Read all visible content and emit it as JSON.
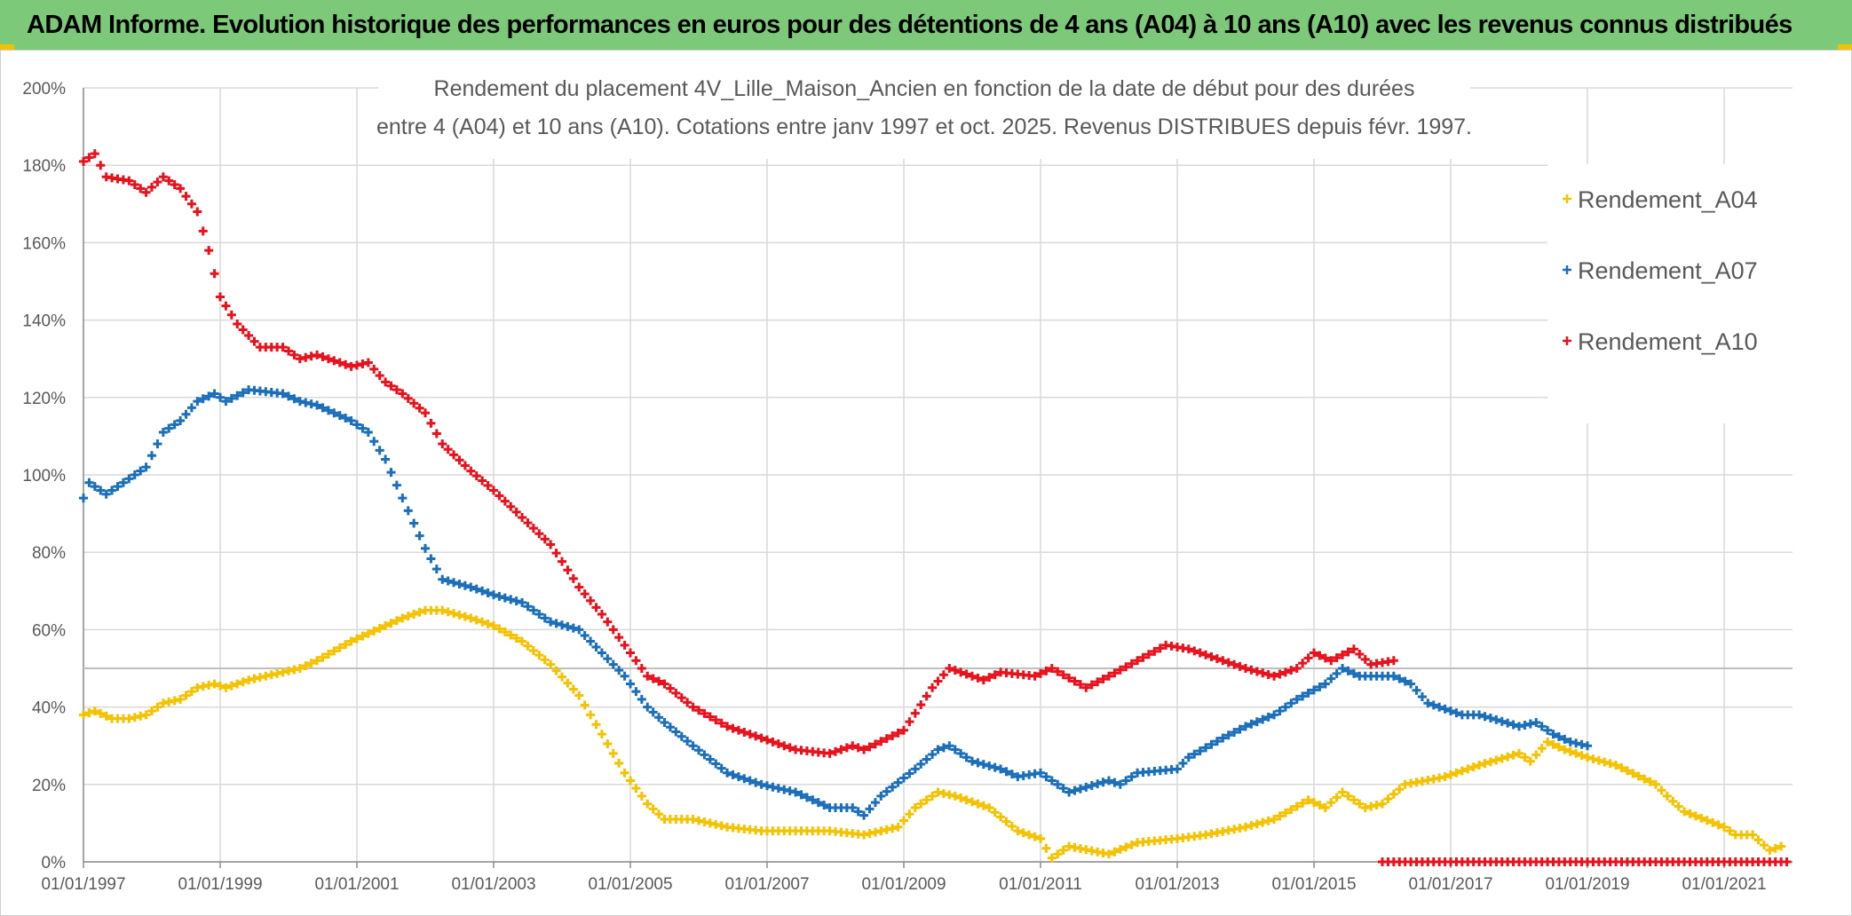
{
  "header": {
    "title": "ADAM Informe. Evolution historique des performances en euros pour des détentions de 4 ans (A04) à 10 ans (A10) avec les revenus connus distribués"
  },
  "colors": {
    "header_bg": "#7cc97a",
    "A04": "#f5c200",
    "A07": "#1b6fba",
    "A10": "#e8111c",
    "grid": "#d9d9d9",
    "reference_line": "#bfbfbf"
  },
  "chart_data": {
    "type": "scatter",
    "title_lines": [
      "Rendement du placement 4V_Lille_Maison_Ancien en fonction de la date de début pour des durées",
      "entre 4 (A04) et 10 ans (A10). Cotations entre janv 1997 et oct. 2025. Revenus DISTRIBUES depuis févr. 1997."
    ],
    "marker": "+",
    "y_tick_labels": [
      "0%",
      "20%",
      "40%",
      "60%",
      "80%",
      "100%",
      "120%",
      "140%",
      "160%",
      "180%",
      "200%"
    ],
    "ylim": [
      0,
      200
    ],
    "y_unit": "%",
    "x_tick_labels": [
      "01/01/1997",
      "01/01/1999",
      "01/01/2001",
      "01/01/2003",
      "01/01/2005",
      "01/01/2007",
      "01/01/2009",
      "01/01/2011",
      "01/01/2013",
      "01/01/2015",
      "01/01/2017",
      "01/01/2019",
      "01/01/2021"
    ],
    "xlim": [
      "1997-01-01",
      "2022-01-01"
    ],
    "reference_line_y": 50,
    "grid": true,
    "legend_position": "right",
    "series": [
      {
        "name": "Rendement_A04",
        "points": [
          [
            "1997-01-01",
            38
          ],
          [
            "1997-03-01",
            39
          ],
          [
            "1997-06-01",
            37
          ],
          [
            "1997-09-01",
            37
          ],
          [
            "1997-12-01",
            38
          ],
          [
            "1998-03-01",
            41
          ],
          [
            "1998-06-01",
            42
          ],
          [
            "1998-09-01",
            45
          ],
          [
            "1998-12-01",
            46
          ],
          [
            "1999-02-01",
            45
          ],
          [
            "1999-06-01",
            47
          ],
          [
            "1999-12-01",
            49
          ],
          [
            "2000-03-01",
            50
          ],
          [
            "2000-06-01",
            52
          ],
          [
            "2000-12-01",
            57
          ],
          [
            "2001-03-01",
            59
          ],
          [
            "2001-06-01",
            61
          ],
          [
            "2001-09-01",
            63
          ],
          [
            "2002-01-01",
            65
          ],
          [
            "2002-04-01",
            65
          ],
          [
            "2002-09-01",
            63
          ],
          [
            "2003-01-01",
            61
          ],
          [
            "2003-06-01",
            57
          ],
          [
            "2003-11-01",
            51
          ],
          [
            "2004-04-01",
            43
          ],
          [
            "2004-08-01",
            33
          ],
          [
            "2004-12-01",
            23
          ],
          [
            "2005-04-01",
            15
          ],
          [
            "2005-07-01",
            11
          ],
          [
            "2005-12-01",
            11
          ],
          [
            "2006-06-01",
            9
          ],
          [
            "2006-12-01",
            8
          ],
          [
            "2007-06-01",
            8
          ],
          [
            "2007-12-01",
            8
          ],
          [
            "2008-06-01",
            7
          ],
          [
            "2008-12-01",
            9
          ],
          [
            "2009-03-01",
            14
          ],
          [
            "2009-07-01",
            18
          ],
          [
            "2009-10-01",
            17
          ],
          [
            "2010-04-01",
            14
          ],
          [
            "2010-09-01",
            8
          ],
          [
            "2011-01-01",
            6
          ],
          [
            "2011-03-01",
            1
          ],
          [
            "2011-06-01",
            4
          ],
          [
            "2012-01-01",
            2
          ],
          [
            "2012-06-01",
            5
          ],
          [
            "2013-01-01",
            6
          ],
          [
            "2013-06-01",
            7
          ],
          [
            "2014-01-01",
            9
          ],
          [
            "2014-06-01",
            11
          ],
          [
            "2014-12-01",
            16
          ],
          [
            "2015-03-01",
            14
          ],
          [
            "2015-06-01",
            18
          ],
          [
            "2015-10-01",
            14
          ],
          [
            "2016-01-01",
            15
          ],
          [
            "2016-05-01",
            20
          ],
          [
            "2016-12-01",
            22
          ],
          [
            "2017-06-01",
            25
          ],
          [
            "2018-01-01",
            28
          ],
          [
            "2018-03-01",
            26
          ],
          [
            "2018-06-01",
            31
          ],
          [
            "2018-09-01",
            29
          ],
          [
            "2019-01-01",
            27
          ],
          [
            "2019-06-01",
            25
          ],
          [
            "2020-01-01",
            20
          ],
          [
            "2020-03-01",
            17
          ],
          [
            "2020-06-01",
            13
          ],
          [
            "2021-01-01",
            9
          ],
          [
            "2021-03-01",
            7
          ],
          [
            "2021-06-01",
            7
          ],
          [
            "2021-09-01",
            3
          ],
          [
            "2021-11-01",
            4
          ]
        ]
      },
      {
        "name": "Rendement_A07",
        "points": [
          [
            "1997-01-01",
            94
          ],
          [
            "1997-02-01",
            98
          ],
          [
            "1997-05-01",
            95
          ],
          [
            "1997-09-01",
            99
          ],
          [
            "1997-12-01",
            102
          ],
          [
            "1998-03-01",
            111
          ],
          [
            "1998-06-01",
            114
          ],
          [
            "1998-09-01",
            119
          ],
          [
            "1998-12-01",
            121
          ],
          [
            "1999-02-01",
            119
          ],
          [
            "1999-06-01",
            122
          ],
          [
            "1999-12-01",
            121
          ],
          [
            "2000-03-01",
            119
          ],
          [
            "2000-06-01",
            118
          ],
          [
            "2000-12-01",
            114
          ],
          [
            "2001-03-01",
            111
          ],
          [
            "2001-06-01",
            104
          ],
          [
            "2001-09-01",
            94
          ],
          [
            "2002-01-01",
            81
          ],
          [
            "2002-04-01",
            73
          ],
          [
            "2002-09-01",
            71
          ],
          [
            "2003-01-01",
            69
          ],
          [
            "2003-06-01",
            67
          ],
          [
            "2003-11-01",
            62
          ],
          [
            "2004-04-01",
            60
          ],
          [
            "2004-08-01",
            54
          ],
          [
            "2004-12-01",
            48
          ],
          [
            "2005-04-01",
            40
          ],
          [
            "2005-07-01",
            36
          ],
          [
            "2005-12-01",
            30
          ],
          [
            "2006-06-01",
            23
          ],
          [
            "2006-12-01",
            20
          ],
          [
            "2007-06-01",
            18
          ],
          [
            "2007-12-01",
            14
          ],
          [
            "2008-04-01",
            14
          ],
          [
            "2008-06-01",
            12
          ],
          [
            "2008-09-01",
            17
          ],
          [
            "2009-03-01",
            24
          ],
          [
            "2009-07-01",
            29
          ],
          [
            "2009-09-01",
            30
          ],
          [
            "2010-01-01",
            26
          ],
          [
            "2010-06-01",
            24
          ],
          [
            "2010-09-01",
            22
          ],
          [
            "2011-01-01",
            23
          ],
          [
            "2011-06-01",
            18
          ],
          [
            "2012-01-01",
            21
          ],
          [
            "2012-03-01",
            20
          ],
          [
            "2012-06-01",
            23
          ],
          [
            "2013-01-01",
            24
          ],
          [
            "2013-03-01",
            27
          ],
          [
            "2013-09-01",
            32
          ],
          [
            "2014-01-01",
            35
          ],
          [
            "2014-06-01",
            38
          ],
          [
            "2014-10-01",
            42
          ],
          [
            "2015-03-01",
            46
          ],
          [
            "2015-06-01",
            50
          ],
          [
            "2015-09-01",
            48
          ],
          [
            "2016-03-01",
            48
          ],
          [
            "2016-06-01",
            46
          ],
          [
            "2016-09-01",
            41
          ],
          [
            "2017-03-01",
            38
          ],
          [
            "2017-06-01",
            38
          ],
          [
            "2018-01-01",
            35
          ],
          [
            "2018-04-01",
            36
          ],
          [
            "2018-07-01",
            33
          ],
          [
            "2018-10-01",
            31
          ],
          [
            "2019-01-01",
            30
          ]
        ]
      },
      {
        "name": "Rendement_A10",
        "points": [
          [
            "1997-01-01",
            181
          ],
          [
            "1997-03-01",
            183
          ],
          [
            "1997-05-01",
            177
          ],
          [
            "1997-09-01",
            176
          ],
          [
            "1997-12-01",
            173
          ],
          [
            "1998-03-01",
            177
          ],
          [
            "1998-06-01",
            174
          ],
          [
            "1998-09-01",
            168
          ],
          [
            "1998-11-01",
            158
          ],
          [
            "1999-01-01",
            146
          ],
          [
            "1999-04-01",
            139
          ],
          [
            "1999-08-01",
            133
          ],
          [
            "1999-12-01",
            133
          ],
          [
            "2000-03-01",
            130
          ],
          [
            "2000-06-01",
            131
          ],
          [
            "2000-12-01",
            128
          ],
          [
            "2001-03-01",
            129
          ],
          [
            "2001-06-01",
            124
          ],
          [
            "2001-09-01",
            121
          ],
          [
            "2002-01-01",
            116
          ],
          [
            "2002-04-01",
            108
          ],
          [
            "2002-09-01",
            101
          ],
          [
            "2003-01-01",
            96
          ],
          [
            "2003-06-01",
            89
          ],
          [
            "2003-11-01",
            82
          ],
          [
            "2004-04-01",
            71
          ],
          [
            "2004-08-01",
            64
          ],
          [
            "2004-12-01",
            56
          ],
          [
            "2005-04-01",
            48
          ],
          [
            "2005-07-01",
            46
          ],
          [
            "2005-12-01",
            40
          ],
          [
            "2006-06-01",
            35
          ],
          [
            "2006-12-01",
            32
          ],
          [
            "2007-06-01",
            29
          ],
          [
            "2007-12-01",
            28
          ],
          [
            "2008-04-01",
            30
          ],
          [
            "2008-06-01",
            29
          ],
          [
            "2009-01-01",
            34
          ],
          [
            "2009-06-01",
            45
          ],
          [
            "2009-09-01",
            50
          ],
          [
            "2010-01-01",
            48
          ],
          [
            "2010-03-01",
            47
          ],
          [
            "2010-06-01",
            49
          ],
          [
            "2010-12-01",
            48
          ],
          [
            "2011-03-01",
            50
          ],
          [
            "2011-09-01",
            45
          ],
          [
            "2012-01-01",
            48
          ],
          [
            "2012-06-01",
            52
          ],
          [
            "2012-11-01",
            56
          ],
          [
            "2013-03-01",
            55
          ],
          [
            "2013-09-01",
            52
          ],
          [
            "2014-01-01",
            50
          ],
          [
            "2014-06-01",
            48
          ],
          [
            "2014-10-01",
            50
          ],
          [
            "2015-01-01",
            54
          ],
          [
            "2015-04-01",
            52
          ],
          [
            "2015-08-01",
            55
          ],
          [
            "2015-11-01",
            51
          ],
          [
            "2016-03-01",
            52
          ]
        ],
        "zero_segment": [
          "2016-01-01",
          "2021-12-01"
        ]
      }
    ]
  }
}
